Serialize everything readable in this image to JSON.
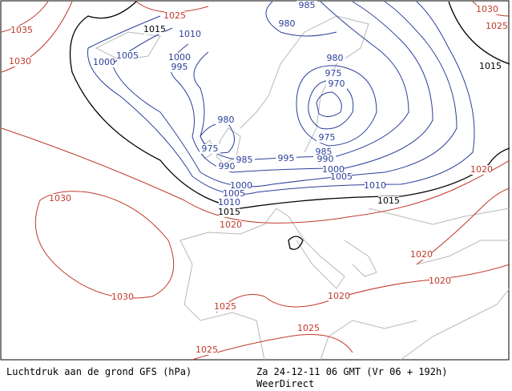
{
  "isobar_labels": [
    "1035",
    "1030",
    "1025",
    "1030",
    "1025",
    "1030",
    "1020",
    "1030",
    "1025",
    "1020",
    "1020",
    "1020",
    "1020",
    "1025",
    "1025",
    "1015",
    "1015",
    "1015",
    "1015",
    "1010",
    "1005",
    "1000",
    "1000",
    "995",
    "985",
    "980",
    "980",
    "975",
    "970",
    "980",
    "975",
    "975",
    "990",
    "985",
    "995",
    "985",
    "990",
    "1000",
    "1000",
    "1005",
    "1005",
    "1010",
    "1010"
  ],
  "footer": {
    "title": "Luchtdruk aan de grond GFS (hPa)",
    "date": "Za 24-12-11 06 GMT (Vr 06 + 192h)",
    "source": "WeerDirect"
  }
}
